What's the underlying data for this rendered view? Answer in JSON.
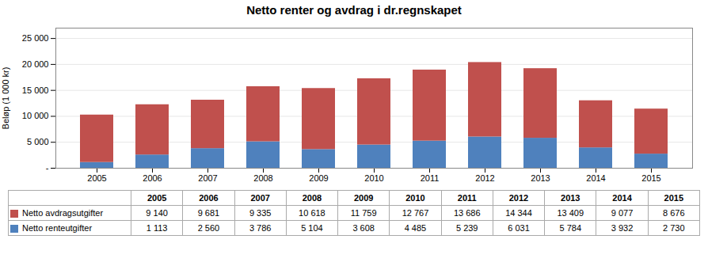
{
  "chart_data": {
    "type": "bar",
    "title": "Netto renter og avdrag i dr.regnskapet",
    "categories": [
      "2005",
      "2006",
      "2007",
      "2008",
      "2009",
      "2010",
      "2011",
      "2012",
      "2013",
      "2014",
      "2015"
    ],
    "series": [
      {
        "name": "Netto renteutgifter",
        "color": "#4F81BD",
        "values": [
          1113,
          2560,
          3786,
          5104,
          3608,
          4485,
          5239,
          6031,
          5784,
          3932,
          2730
        ],
        "value_labels": [
          "1 113",
          "2 560",
          "3 786",
          "5 104",
          "3 608",
          "4 485",
          "5 239",
          "6 031",
          "5 784",
          "3 932",
          "2 730"
        ]
      },
      {
        "name": "Netto avdragsutgifter",
        "color": "#C0504D",
        "values": [
          9140,
          9681,
          9335,
          10618,
          11759,
          12767,
          13686,
          14344,
          13409,
          9077,
          8676
        ],
        "value_labels": [
          "9 140",
          "9 681",
          "9 335",
          "10 618",
          "11 759",
          "12 767",
          "13 686",
          "14 344",
          "13 409",
          "9 077",
          "8 676"
        ]
      }
    ],
    "stacked": true,
    "ylabel": "Beløp (1 000 kr)",
    "ylim": [
      0,
      27000
    ],
    "yticks": [
      {
        "value": 0,
        "label": "-"
      },
      {
        "value": 5000,
        "label": "5 000"
      },
      {
        "value": 10000,
        "label": "10 000"
      },
      {
        "value": 15000,
        "label": "15 000"
      },
      {
        "value": 20000,
        "label": "20 000"
      },
      {
        "value": 25000,
        "label": "25 000"
      }
    ],
    "grid": true
  }
}
